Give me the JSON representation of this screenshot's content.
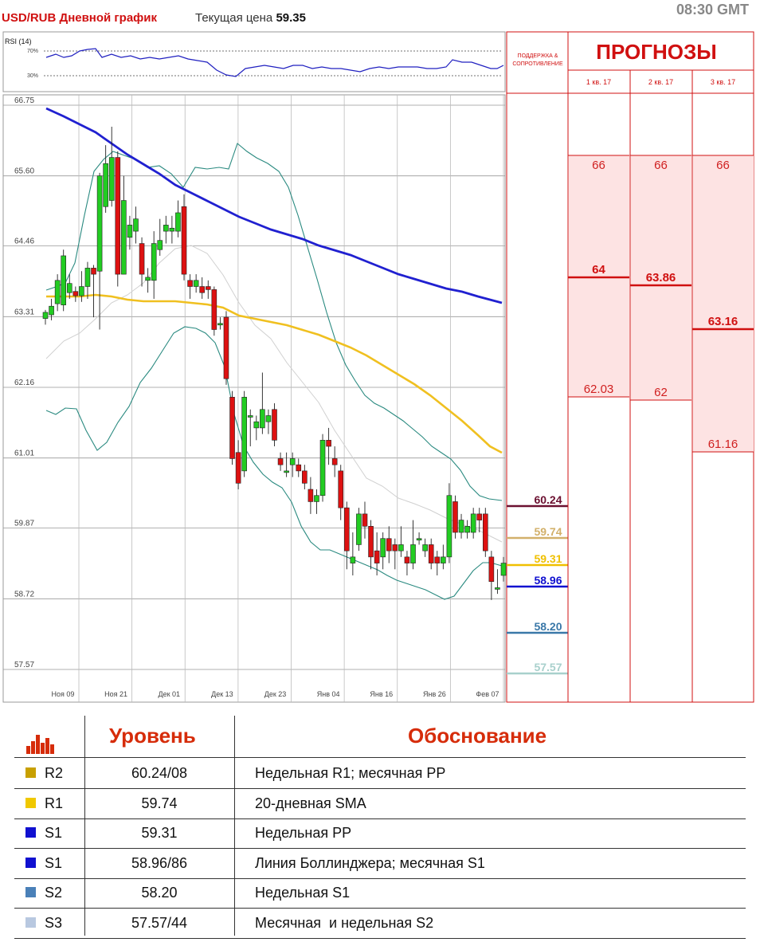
{
  "header": {
    "title": "USD/RUB Дневной график",
    "price_label": "Текущая цена",
    "price_value": "59.35",
    "time": "08:30 GMT"
  },
  "rsi": {
    "label": "RSI (14)",
    "levels": [
      "70%",
      "30%"
    ]
  },
  "support_header": [
    "ПОДДЕРЖКА &",
    "СОПРОТИВЛЕНИЕ"
  ],
  "forecasts": {
    "title": "ПРОГНОЗЫ",
    "columns": [
      {
        "label": "1 кв. 17",
        "high": "66",
        "mid": "64",
        "low": "62.03"
      },
      {
        "label": "2 кв. 17",
        "high": "66",
        "mid": "63.86",
        "low": "62"
      },
      {
        "label": "3 кв. 17",
        "high": "66",
        "mid": "63.16",
        "low": "61.16"
      }
    ]
  },
  "levels_panel": [
    {
      "value": "60.24",
      "color": "#6b1030"
    },
    {
      "value": "59.74",
      "color": "#d2b06a"
    },
    {
      "value": "59.31",
      "color": "#f0c000"
    },
    {
      "value": "58.96",
      "color": "#1010d0"
    },
    {
      "value": "58.20",
      "color": "#3a78a8"
    },
    {
      "value": "57.57",
      "color": "#a8d0cc"
    }
  ],
  "chart_data": {
    "type": "candlestick",
    "title": "USD/RUB Дневной график",
    "yticks": [
      "66.75",
      "65.60",
      "64.46",
      "63.31",
      "62.16",
      "61.01",
      "59.87",
      "58.72",
      "57.57"
    ],
    "ylim": [
      57.57,
      66.75
    ],
    "xticks": [
      "Ноя 09",
      "Ноя 21",
      "Дек 01",
      "Дек 13",
      "Дек 23",
      "Янв 04",
      "Янв 16",
      "Янв 26",
      "Фев 07"
    ],
    "candles": [
      [
        63.28,
        63.38,
        63.42,
        63.18
      ],
      [
        63.34,
        63.48,
        63.6,
        63.25
      ],
      [
        63.52,
        63.9,
        64.0,
        63.4
      ],
      [
        63.5,
        64.3,
        64.4,
        63.4
      ],
      [
        63.7,
        63.85,
        64.0,
        63.6
      ],
      [
        63.72,
        63.65,
        63.8,
        63.55
      ],
      [
        63.65,
        63.8,
        64.05,
        63.55
      ],
      [
        63.8,
        64.1,
        64.2,
        63.6
      ],
      [
        64.1,
        64.0,
        64.15,
        63.3
      ],
      [
        64.05,
        65.6,
        65.65,
        63.1
      ],
      [
        65.1,
        65.8,
        66.1,
        65.0
      ],
      [
        65.2,
        65.9,
        66.4,
        65.1
      ],
      [
        65.9,
        64.0,
        66.0,
        63.8
      ],
      [
        64.0,
        65.2,
        65.6,
        64.0
      ],
      [
        64.6,
        64.8,
        64.95,
        64.4
      ],
      [
        64.7,
        64.9,
        65.1,
        64.5
      ],
      [
        64.5,
        64.0,
        64.6,
        63.8
      ],
      [
        63.9,
        63.95,
        64.1,
        63.7
      ],
      [
        63.9,
        64.5,
        64.7,
        63.6
      ],
      [
        64.4,
        64.55,
        64.9,
        64.3
      ],
      [
        64.7,
        64.8,
        64.95,
        64.5
      ],
      [
        64.7,
        64.75,
        64.95,
        64.5
      ],
      [
        64.7,
        65.0,
        65.2,
        64.6
      ],
      [
        65.1,
        64.0,
        65.3,
        63.9
      ],
      [
        63.9,
        63.8,
        64.0,
        63.6
      ],
      [
        63.8,
        63.9,
        64.0,
        63.7
      ],
      [
        63.8,
        63.7,
        63.95,
        63.6
      ],
      [
        63.8,
        63.75,
        63.9,
        63.6
      ],
      [
        63.75,
        63.1,
        63.8,
        63.0
      ],
      [
        63.2,
        63.2,
        63.3,
        63.1
      ],
      [
        63.3,
        62.3,
        63.4,
        62.2
      ],
      [
        62.0,
        61.0,
        62.1,
        60.9
      ],
      [
        61.1,
        60.6,
        61.3,
        60.5
      ],
      [
        60.8,
        62.0,
        62.1,
        60.7
      ],
      [
        61.7,
        61.7,
        61.8,
        61.2
      ],
      [
        61.5,
        61.6,
        61.7,
        61.3
      ],
      [
        61.5,
        61.8,
        62.4,
        61.4
      ],
      [
        61.6,
        61.7,
        61.8,
        61.4
      ],
      [
        61.8,
        61.3,
        61.9,
        61.2
      ],
      [
        61.0,
        60.9,
        61.1,
        60.8
      ],
      [
        60.8,
        60.8,
        61.1,
        60.7
      ],
      [
        60.9,
        61.0,
        61.1,
        60.7
      ],
      [
        60.9,
        60.8,
        61.0,
        60.7
      ],
      [
        60.8,
        60.6,
        60.9,
        60.5
      ],
      [
        60.5,
        60.3,
        60.7,
        60.1
      ],
      [
        60.3,
        60.4,
        60.5,
        60.1
      ],
      [
        60.4,
        61.3,
        61.4,
        60.3
      ],
      [
        61.3,
        61.2,
        61.5,
        60.9
      ],
      [
        61.0,
        60.9,
        61.2,
        60.7
      ],
      [
        60.8,
        60.2,
        60.9,
        60.0
      ],
      [
        60.2,
        59.5,
        60.3,
        59.2
      ],
      [
        59.3,
        59.4,
        59.8,
        59.1
      ],
      [
        59.6,
        60.1,
        60.2,
        59.5
      ],
      [
        60.1,
        59.9,
        60.3,
        59.7
      ],
      [
        59.9,
        59.4,
        60.0,
        59.2
      ],
      [
        59.5,
        59.3,
        59.8,
        59.1
      ],
      [
        59.4,
        59.7,
        59.8,
        59.2
      ],
      [
        59.7,
        59.5,
        59.9,
        59.3
      ],
      [
        59.6,
        59.5,
        59.7,
        59.2
      ],
      [
        59.5,
        59.6,
        59.9,
        59.4
      ],
      [
        59.4,
        59.3,
        59.5,
        59.1
      ],
      [
        59.3,
        59.6,
        60.0,
        59.2
      ],
      [
        59.7,
        59.7,
        59.8,
        59.6
      ],
      [
        59.5,
        59.6,
        59.7,
        59.4
      ],
      [
        59.6,
        59.3,
        59.7,
        59.2
      ],
      [
        59.4,
        59.3,
        59.5,
        59.1
      ],
      [
        59.3,
        59.4,
        59.6,
        59.2
      ],
      [
        59.4,
        60.4,
        60.6,
        59.3
      ],
      [
        60.3,
        59.8,
        60.4,
        59.7
      ],
      [
        59.8,
        60.0,
        60.1,
        59.7
      ],
      [
        59.8,
        59.9,
        60.0,
        59.7
      ],
      [
        59.8,
        60.1,
        60.2,
        59.7
      ],
      [
        60.1,
        60.0,
        60.2,
        59.8
      ],
      [
        60.1,
        59.5,
        60.2,
        59.4
      ],
      [
        59.4,
        59.0,
        59.5,
        58.7
      ],
      [
        58.9,
        58.9,
        59.2,
        58.8
      ],
      [
        59.1,
        59.3,
        59.4,
        59.0
      ]
    ]
  },
  "table": {
    "col_level": "Уровень",
    "col_reason": "Обоснование",
    "rows": [
      {
        "tag": "R2",
        "color": "#c8a000",
        "level": "60.24/08",
        "reason": "Недельная R1; месячная PP"
      },
      {
        "tag": "R1",
        "color": "#f0c800",
        "level": "59.74",
        "reason": "20-дневная SMA"
      },
      {
        "tag": "S1",
        "color": "#1010d0",
        "level": "59.31",
        "reason": "Недельная PP"
      },
      {
        "tag": "S1",
        "color": "#1010d0",
        "level": "58.96/86",
        "reason": "Линия Боллинджера; месячная S1"
      },
      {
        "tag": "S2",
        "color": "#4a80b8",
        "level": "58.20",
        "reason": "Недельная S1"
      },
      {
        "tag": "S3",
        "color": "#b8c8e0",
        "level": "57.57/44",
        "reason": "Месячная  и недельная S2"
      }
    ]
  }
}
